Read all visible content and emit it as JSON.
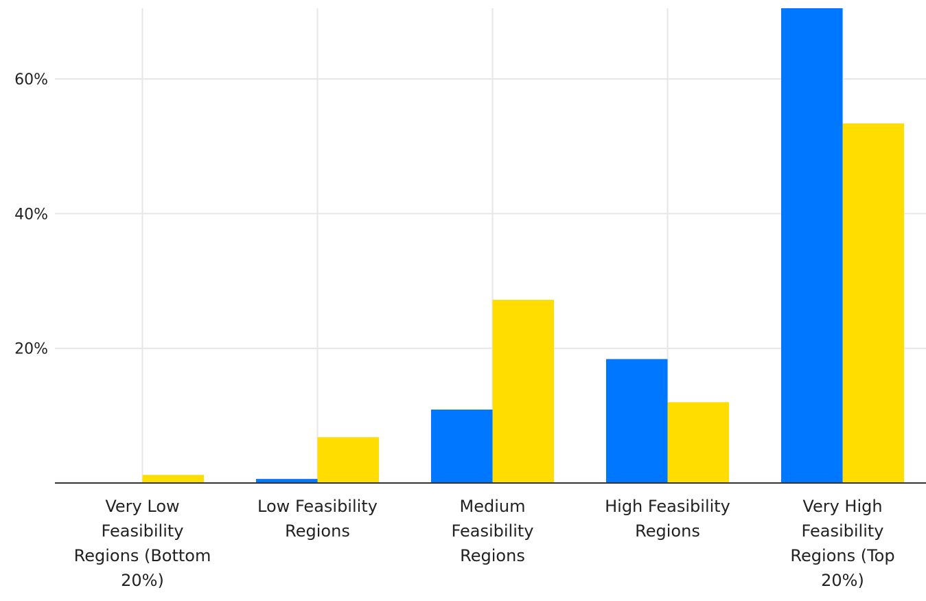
{
  "chart_data": {
    "type": "bar",
    "categories": [
      [
        "Very Low",
        "Feasibility",
        "Regions (Bottom",
        "20%)"
      ],
      [
        "Low Feasibility",
        "Regions"
      ],
      [
        "Medium",
        "Feasibility",
        "Regions"
      ],
      [
        "High Feasibility",
        "Regions"
      ],
      [
        "Very High",
        "Feasibility",
        "Regions (Top",
        "20%)"
      ]
    ],
    "series": [
      {
        "color": "#0077ff",
        "values": [
          0,
          0.6,
          10.9,
          18.4,
          70.5
        ]
      },
      {
        "color": "#ffdd00",
        "values": [
          1.2,
          6.8,
          27.2,
          12.0,
          53.4
        ]
      }
    ],
    "ylim": [
      0,
      70.5
    ],
    "yticks": [
      20,
      40,
      60
    ],
    "ytick_labels": [
      "20%",
      "40%",
      "60%"
    ],
    "grid": true
  }
}
